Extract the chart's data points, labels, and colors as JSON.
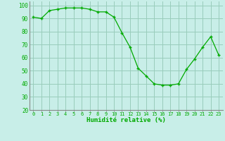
{
  "x": [
    0,
    1,
    2,
    3,
    4,
    5,
    6,
    7,
    8,
    9,
    10,
    11,
    12,
    13,
    14,
    15,
    16,
    17,
    18,
    19,
    20,
    21,
    22,
    23
  ],
  "y": [
    91,
    90,
    96,
    97,
    98,
    98,
    98,
    97,
    95,
    95,
    91,
    79,
    68,
    52,
    46,
    40,
    39,
    39,
    40,
    51,
    59,
    68,
    76,
    62
  ],
  "line_color": "#00aa00",
  "marker_color": "#00aa00",
  "bg_color": "#c8eee8",
  "grid_color": "#99ccbb",
  "xlabel": "Humidité relative (%)",
  "xlabel_color": "#00aa00",
  "tick_color": "#00aa00",
  "axis_color": "#888888",
  "ylim": [
    20,
    103
  ],
  "yticks": [
    20,
    30,
    40,
    50,
    60,
    70,
    80,
    90,
    100
  ],
  "xlim": [
    -0.5,
    23.5
  ]
}
